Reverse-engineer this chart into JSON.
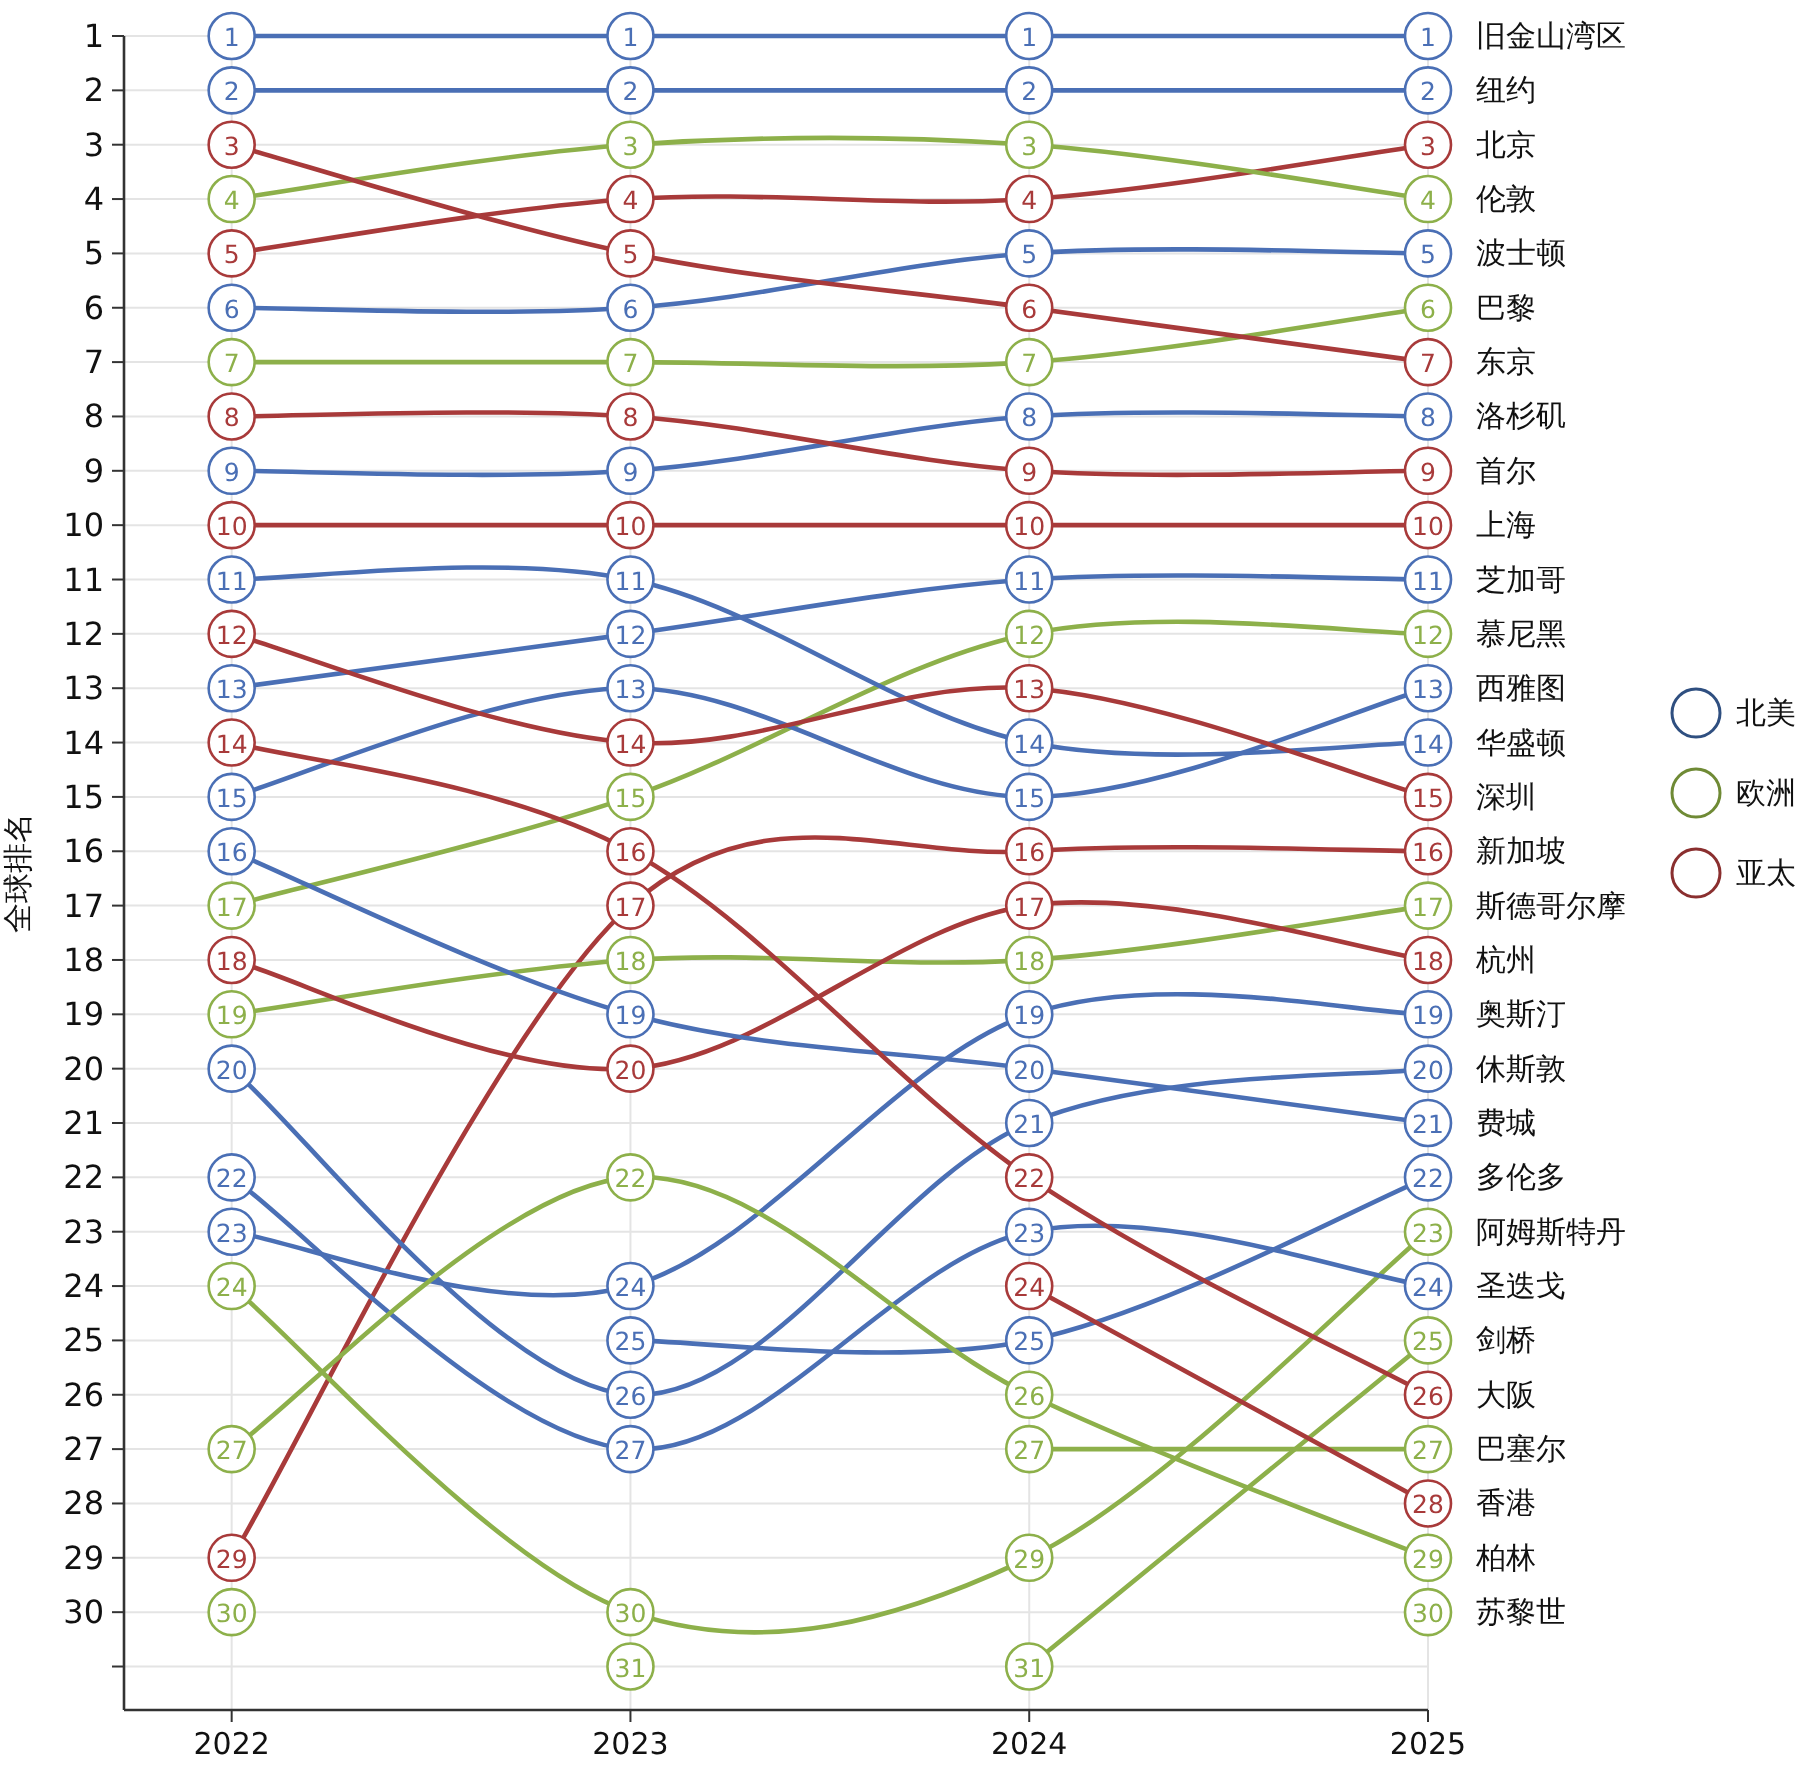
{
  "chart_data": {
    "type": "line",
    "ylabel": "全球排名",
    "x": [
      2022,
      2023,
      2024,
      2025
    ],
    "xlim": [
      2021.73,
      2025
    ],
    "xticks": [
      2022,
      2023,
      2024,
      2025
    ],
    "ylim": [
      31.8,
      1
    ],
    "yticks": [
      1,
      2,
      3,
      4,
      5,
      6,
      7,
      8,
      9,
      10,
      11,
      12,
      13,
      14,
      15,
      16,
      17,
      18,
      19,
      20,
      21,
      22,
      23,
      24,
      25,
      26,
      27,
      28,
      29,
      30,
      {
        "value": 31,
        "label": null
      }
    ],
    "grid": true,
    "marker": "circle",
    "data_labels": true,
    "legend": "right",
    "line_style": "solid",
    "series": [
      {
        "name": "旧金山湾区",
        "color": "#4a6fb5",
        "values": [
          1,
          1,
          1,
          1
        ]
      },
      {
        "name": "纽约",
        "color": "#4a6fb5",
        "values": [
          2,
          2,
          2,
          2
        ]
      },
      {
        "name": "北京",
        "color": "#a83a3a",
        "values": [
          5,
          4,
          4,
          3
        ]
      },
      {
        "name": "伦敦",
        "color": "#8db04a",
        "values": [
          4,
          3,
          3,
          4
        ]
      },
      {
        "name": "波士顿",
        "color": "#4a6fb5",
        "values": [
          6,
          6,
          5,
          5
        ]
      },
      {
        "name": "巴黎",
        "color": "#8db04a",
        "values": [
          7,
          7,
          7,
          6
        ]
      },
      {
        "name": "东京",
        "color": "#a83a3a",
        "values": [
          3,
          5,
          6,
          7
        ]
      },
      {
        "name": "洛杉矶",
        "color": "#4a6fb5",
        "values": [
          9,
          9,
          8,
          8
        ]
      },
      {
        "name": "首尔",
        "color": "#a83a3a",
        "values": [
          8,
          8,
          9,
          9
        ]
      },
      {
        "name": "上海",
        "color": "#a83a3a",
        "values": [
          10,
          10,
          10,
          10
        ]
      },
      {
        "name": "芝加哥",
        "color": "#4a6fb5",
        "values": [
          13,
          12,
          11,
          11
        ]
      },
      {
        "name": "慕尼黑",
        "color": "#8db04a",
        "values": [
          17,
          15,
          12,
          12
        ]
      },
      {
        "name": "西雅图",
        "color": "#4a6fb5",
        "values": [
          15,
          13,
          15,
          13
        ]
      },
      {
        "name": "华盛顿",
        "color": "#4a6fb5",
        "values": [
          11,
          11,
          14,
          14
        ]
      },
      {
        "name": "深圳",
        "color": "#a83a3a",
        "values": [
          12,
          14,
          13,
          15
        ]
      },
      {
        "name": "新加坡",
        "color": "#a83a3a",
        "values": [
          29,
          17,
          16,
          16
        ]
      },
      {
        "name": "斯德哥尔摩",
        "color": "#8db04a",
        "values": [
          19,
          18,
          18,
          17
        ]
      },
      {
        "name": "杭州",
        "color": "#a83a3a",
        "values": [
          18,
          20,
          17,
          18
        ]
      },
      {
        "name": "奥斯汀",
        "color": "#4a6fb5",
        "values": [
          23,
          24,
          19,
          19
        ]
      },
      {
        "name": "休斯敦",
        "color": "#4a6fb5",
        "values": [
          20,
          26,
          21,
          20
        ]
      },
      {
        "name": "费城",
        "color": "#4a6fb5",
        "values": [
          16,
          19,
          20,
          21
        ]
      },
      {
        "name": "多伦多",
        "color": "#4a6fb5",
        "values": [
          null,
          25,
          25,
          22
        ]
      },
      {
        "name": "阿姆斯特丹",
        "color": "#8db04a",
        "values": [
          24,
          30,
          29,
          23
        ]
      },
      {
        "name": "圣迭戈",
        "color": "#4a6fb5",
        "values": [
          22,
          27,
          23,
          24
        ]
      },
      {
        "name": "剑桥",
        "color": "#8db04a",
        "values": [
          null,
          null,
          31,
          25
        ]
      },
      {
        "name": "大阪",
        "color": "#a83a3a",
        "values": [
          14,
          16,
          22,
          26
        ]
      },
      {
        "name": "巴塞尔",
        "color": "#8db04a",
        "values": [
          30,
          null,
          27,
          27
        ]
      },
      {
        "name": "香港",
        "color": "#a83a3a",
        "values": [
          null,
          null,
          24,
          28
        ]
      },
      {
        "name": "柏林",
        "color": "#8db04a",
        "values": [
          27,
          22,
          26,
          29
        ]
      },
      {
        "name": "苏黎世",
        "type": "scatter",
        "color": "#8db04a",
        "values": [
          null,
          31,
          null,
          30
        ]
      },
      {
        "name": "北美",
        "color": "#2f4f80",
        "values": [
          null,
          null,
          null,
          null
        ]
      },
      {
        "name": "欧洲",
        "color": "#6f8a35",
        "values": [
          null,
          null,
          null,
          null
        ]
      },
      {
        "name": "亚太",
        "color": "#8a2f2f",
        "values": [
          null,
          null,
          null,
          null
        ]
      }
    ]
  }
}
